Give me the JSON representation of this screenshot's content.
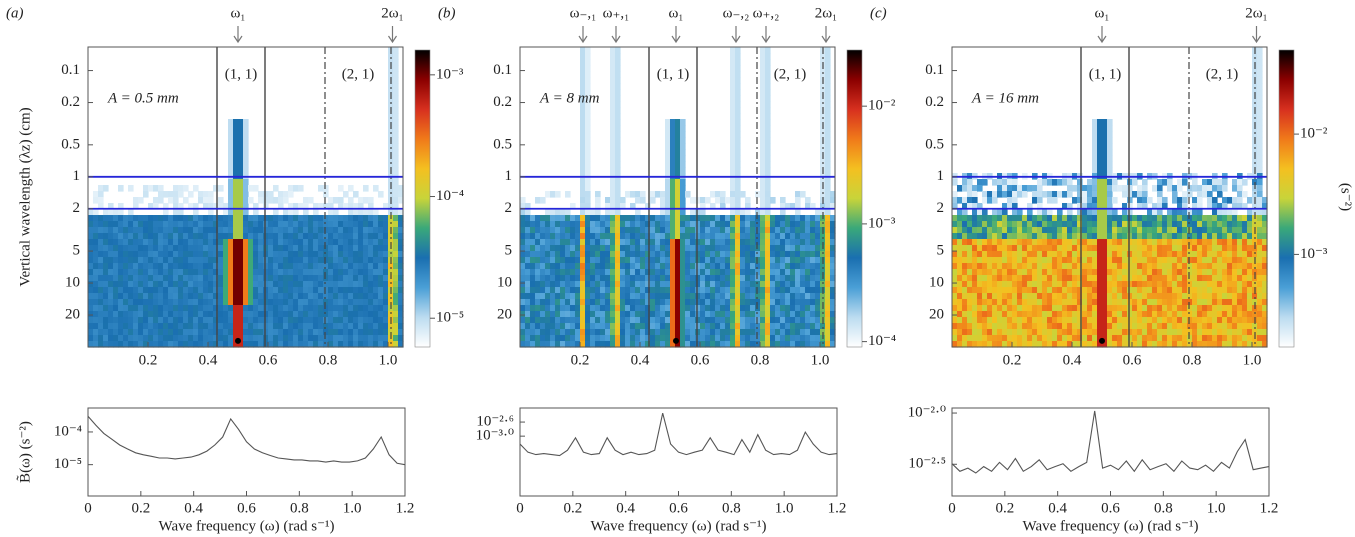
{
  "colormap": [
    "#ffffff",
    "#bcdcf0",
    "#4a9fd6",
    "#1a6fb0",
    "#3aa87a",
    "#c8d43a",
    "#f4c020",
    "#f07a1a",
    "#d7301f",
    "#8b0000",
    "#000000"
  ],
  "chart_data": [
    {
      "type": "heatmap",
      "panel_label": "(a)",
      "annotation": "A = 0.5 mm",
      "ylabel": "Vertical wavelength (λz) (cm)",
      "xlim": [
        0,
        1.05
      ],
      "ylim": [
        0.06,
        40
      ],
      "log_y": true,
      "xticks": [
        0.2,
        0.4,
        0.6,
        0.8,
        {
          "value": 1,
          "label": "1.0"
        }
      ],
      "yticks": [
        0.1,
        0.2,
        0.5,
        1,
        2,
        5,
        10,
        20
      ],
      "vlines_solid": [
        0.43,
        0.59
      ],
      "vlines_dashdot": [
        0.79,
        1.01
      ],
      "vline_color": "#444",
      "region_labels": [
        "(1, 1)",
        "(2, 1)"
      ],
      "hlines": [
        1,
        2
      ],
      "hline_color": "#2626d9",
      "markers": [
        {
          "label": "ω₁",
          "x": 0.5
        },
        {
          "label": "2ω₁",
          "x": 1.015
        }
      ],
      "point": {
        "x": 0.5,
        "y": 35
      },
      "colorbar": {
        "clim": [
          5.8e-06,
          0.0016
        ],
        "ticks": [
          {
            "value": 0.001,
            "label": "10⁻³"
          },
          {
            "value": 0.0001,
            "label": "10⁻⁴"
          },
          {
            "value": 1e-05,
            "label": "10⁻⁵"
          }
        ]
      }
    },
    {
      "type": "line",
      "ylabel": "B̃(ω) (s⁻²)",
      "xlabel": "Wave frequency (ω) (rad s⁻¹)",
      "color": "#555",
      "log_y": true,
      "xlim": [
        0,
        1.2
      ],
      "ylim": [
        1.1e-06,
        0.00054
      ],
      "xticks": [
        0,
        0.2,
        0.4,
        0.6,
        0.8,
        {
          "value": 1,
          "label": "1.0"
        },
        1.2
      ],
      "yticks": [
        {
          "value": 0.0001,
          "label": "10⁻⁴"
        },
        {
          "value": 1e-05,
          "label": "10⁻⁵"
        }
      ],
      "x": [
        0,
        0.03,
        0.06,
        0.09,
        0.12,
        0.15,
        0.18,
        0.21,
        0.24,
        0.27,
        0.3,
        0.33,
        0.36,
        0.39,
        0.42,
        0.45,
        0.48,
        0.51,
        0.54,
        0.57,
        0.6,
        0.63,
        0.66,
        0.69,
        0.72,
        0.75,
        0.78,
        0.81,
        0.84,
        0.87,
        0.9,
        0.93,
        0.96,
        0.99,
        1.02,
        1.05,
        1.08,
        1.11,
        1.14,
        1.17,
        1.2
      ],
      "values": [
        0.0003,
        0.00016,
        9e-05,
        6e-05,
        4e-05,
        3e-05,
        2.3e-05,
        2e-05,
        1.8e-05,
        1.6e-05,
        1.6e-05,
        1.5e-05,
        1.6e-05,
        1.7e-05,
        2e-05,
        2.6e-05,
        4e-05,
        7e-05,
        0.00025,
        0.00012,
        5e-05,
        3e-05,
        2.3e-05,
        1.9e-05,
        1.6e-05,
        1.5e-05,
        1.4e-05,
        1.4e-05,
        1.3e-05,
        1.3e-05,
        1.2e-05,
        1.3e-05,
        1.2e-05,
        1.2e-05,
        1.3e-05,
        1.6e-05,
        3e-05,
        7e-05,
        2e-05,
        1.1e-05,
        1e-05
      ]
    },
    {
      "type": "heatmap",
      "panel_label": "(b)",
      "annotation": "A = 8 mm",
      "xlim": [
        0,
        1.05
      ],
      "ylim": [
        0.06,
        40
      ],
      "log_y": true,
      "xticks": [
        0.2,
        0.4,
        0.6,
        0.8,
        {
          "value": 1,
          "label": "1.0"
        }
      ],
      "yticks": [
        0.1,
        0.2,
        0.5,
        1,
        2,
        5,
        10,
        20
      ],
      "vlines_solid": [
        0.43,
        0.59
      ],
      "vlines_dashdot": [
        0.79,
        1.01
      ],
      "vline_color": "#444",
      "region_labels": [
        "(1, 1)",
        "(2, 1)"
      ],
      "hlines": [
        1,
        2
      ],
      "hline_color": "#2626d9",
      "markers": [
        {
          "label": "ω₋,₁",
          "x": 0.21
        },
        {
          "label": "ω₊,₁",
          "x": 0.32
        },
        {
          "label": "ω₁",
          "x": 0.52
        },
        {
          "label": "ω₋,₂",
          "x": 0.72
        },
        {
          "label": "ω₊,₂",
          "x": 0.82
        },
        {
          "label": "2ω₁",
          "x": 1.02
        }
      ],
      "point": {
        "x": 0.52,
        "y": 35
      },
      "colorbar": {
        "clim": [
          9e-05,
          0.03
        ],
        "ticks": [
          {
            "value": 0.01,
            "label": "10⁻²"
          },
          {
            "value": 0.001,
            "label": "10⁻³"
          },
          {
            "value": 0.0001,
            "label": "10⁻⁴"
          }
        ]
      }
    },
    {
      "type": "line",
      "xlabel": "Wave frequency (ω) (rad s⁻¹)",
      "color": "#555",
      "log_y": true,
      "xlim": [
        0,
        1.2
      ],
      "ylim": [
        2e-05,
        0.0063
      ],
      "xticks": [
        0,
        0.2,
        0.4,
        0.6,
        0.8,
        {
          "value": 1,
          "label": "1.0"
        },
        1.2
      ],
      "yticks": [
        {
          "value": 0.0025119,
          "label": "10⁻²·⁶"
        },
        {
          "value": 0.001,
          "label": "10⁻³·⁰"
        }
      ],
      "x": [
        0,
        0.03,
        0.06,
        0.09,
        0.12,
        0.15,
        0.18,
        0.21,
        0.24,
        0.27,
        0.3,
        0.33,
        0.36,
        0.39,
        0.42,
        0.45,
        0.48,
        0.51,
        0.54,
        0.57,
        0.6,
        0.63,
        0.66,
        0.69,
        0.72,
        0.75,
        0.78,
        0.81,
        0.84,
        0.87,
        0.9,
        0.93,
        0.96,
        0.99,
        1.02,
        1.05,
        1.08,
        1.11,
        1.14,
        1.17,
        1.2
      ],
      "values": [
        0.0006,
        0.00035,
        0.0003,
        0.00032,
        0.0003,
        0.00028,
        0.0004,
        0.0009,
        0.00035,
        0.0003,
        0.00032,
        0.0009,
        0.0004,
        0.0003,
        0.00035,
        0.0003,
        0.00032,
        0.0004,
        0.0045,
        0.0006,
        0.00035,
        0.0003,
        0.00035,
        0.0004,
        0.0009,
        0.0004,
        0.00035,
        0.0003,
        0.0008,
        0.00035,
        0.0011,
        0.0004,
        0.0003,
        0.00032,
        0.0003,
        0.0004,
        0.0013,
        0.0006,
        0.00035,
        0.0003,
        0.00032
      ]
    },
    {
      "type": "heatmap",
      "panel_label": "(c)",
      "annotation": "A = 16 mm",
      "xlim": [
        0,
        1.05
      ],
      "ylim": [
        0.06,
        40
      ],
      "log_y": true,
      "xticks": [
        0.2,
        0.4,
        0.6,
        0.8,
        {
          "value": 1,
          "label": "1.0"
        }
      ],
      "yticks": [
        0.1,
        0.2,
        0.5,
        1,
        2,
        5,
        10,
        20
      ],
      "vlines_solid": [
        0.43,
        0.59
      ],
      "vlines_dashdot": [
        0.79,
        1.01
      ],
      "vline_color": "#444",
      "region_labels": [
        "(1, 1)",
        "(2, 1)"
      ],
      "hlines": [
        1,
        2
      ],
      "hline_color": "#2626d9",
      "markers": [
        {
          "label": "ω₁",
          "x": 0.5
        },
        {
          "label": "2ω₁",
          "x": 1.015
        }
      ],
      "point": {
        "x": 0.5,
        "y": 35
      },
      "colorbar": {
        "clim": [
          0.00017,
          0.05
        ],
        "label": "(s⁻²)",
        "ticks": [
          {
            "value": 0.01,
            "label": "10⁻²"
          },
          {
            "value": 0.001,
            "label": "10⁻³"
          }
        ]
      }
    },
    {
      "type": "line",
      "xlabel": "Wave frequency (ω) (rad s⁻¹)",
      "color": "#555",
      "log_y": true,
      "xlim": [
        0,
        1.2
      ],
      "ylim": [
        0.00155,
        0.0112
      ],
      "xticks": [
        0,
        0.2,
        0.4,
        0.6,
        0.8,
        {
          "value": 1,
          "label": "1.0"
        },
        1.2
      ],
      "yticks": [
        {
          "value": 0.01,
          "label": "10⁻²·⁰"
        },
        {
          "value": 0.0031623,
          "label": "10⁻²·⁵"
        }
      ],
      "x": [
        0,
        0.03,
        0.06,
        0.09,
        0.12,
        0.15,
        0.18,
        0.21,
        0.24,
        0.27,
        0.3,
        0.33,
        0.36,
        0.39,
        0.42,
        0.45,
        0.48,
        0.51,
        0.54,
        0.57,
        0.6,
        0.63,
        0.66,
        0.69,
        0.72,
        0.75,
        0.78,
        0.81,
        0.84,
        0.87,
        0.9,
        0.93,
        0.96,
        0.99,
        1.02,
        1.05,
        1.08,
        1.11,
        1.14,
        1.17,
        1.2
      ],
      "values": [
        0.0032,
        0.0027,
        0.0029,
        0.0026,
        0.003,
        0.0027,
        0.0033,
        0.0028,
        0.0036,
        0.0027,
        0.003,
        0.0035,
        0.0028,
        0.003,
        0.0032,
        0.0027,
        0.003,
        0.0033,
        0.0105,
        0.0029,
        0.0031,
        0.0028,
        0.0034,
        0.0027,
        0.0035,
        0.0028,
        0.003,
        0.0032,
        0.0027,
        0.0034,
        0.0029,
        0.0028,
        0.0031,
        0.0027,
        0.0033,
        0.0029,
        0.0042,
        0.0055,
        0.0028,
        0.0029,
        0.003
      ]
    }
  ]
}
